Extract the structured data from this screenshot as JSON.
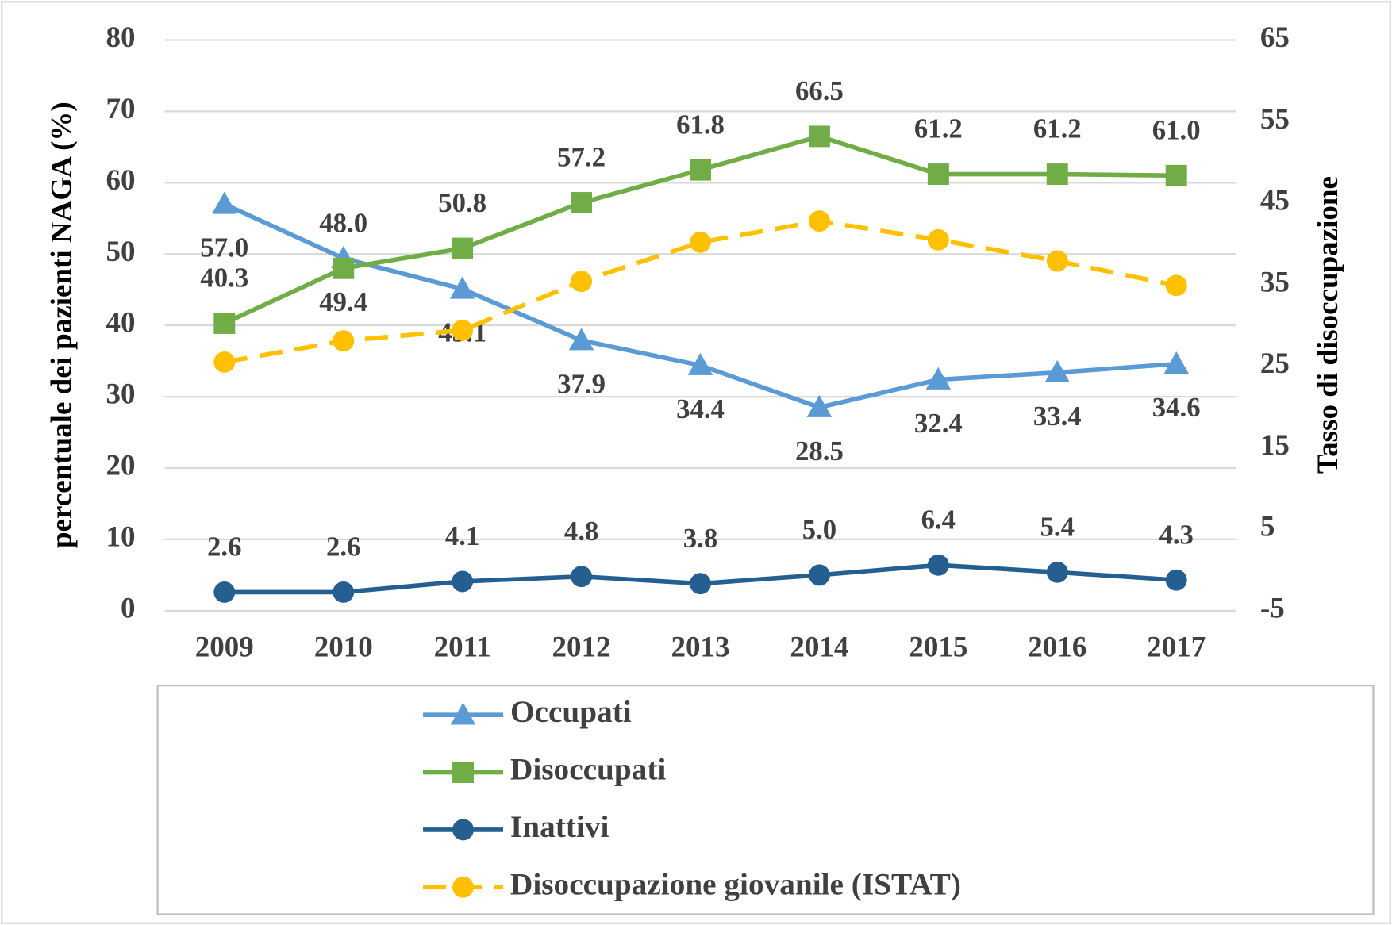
{
  "chart_data": {
    "type": "line",
    "categories": [
      "2009",
      "2010",
      "2011",
      "2012",
      "2013",
      "2014",
      "2015",
      "2016",
      "2017"
    ],
    "ylabel": "percentuale dei pazienti NAGA (%)",
    "y2label": "Tasso di disoccupazione",
    "ylim": [
      0,
      80
    ],
    "yticks": [
      0,
      10,
      20,
      30,
      40,
      50,
      60,
      70,
      80
    ],
    "y2lim": [
      -5,
      65
    ],
    "y2ticks": [
      -5,
      5,
      15,
      25,
      35,
      45,
      55,
      65
    ],
    "grid": true,
    "legend": "bottom",
    "series": [
      {
        "name": "Occupati",
        "color": "#5b9bd5",
        "marker": "triangle",
        "label_pos": "below",
        "values": [
          57,
          49.4,
          45.1,
          37.9,
          34.4,
          28.5,
          32.4,
          33.4,
          34.6
        ],
        "value_labels": [
          "57.0",
          "49.4",
          "45.1",
          "37.9",
          "34.4",
          "28.5",
          "32.4",
          "33.4",
          "34.6"
        ]
      },
      {
        "name": "Disoccupati",
        "color": "#70ad47",
        "marker": "square",
        "label_pos": "above",
        "values": [
          40.3,
          48,
          50.8,
          57.2,
          61.8,
          66.5,
          61.2,
          61.2,
          61
        ],
        "value_labels": [
          "40.3",
          "48.0",
          "50.8",
          "57.2",
          "61.8",
          "66.5",
          "61.2",
          "61.2",
          "61.0"
        ]
      },
      {
        "name": "Inattivi",
        "color": "#255e91",
        "marker": "circle",
        "label_pos": "above",
        "values": [
          2.6,
          2.6,
          4.1,
          4.8,
          3.8,
          5,
          6.4,
          5.4,
          4.3
        ],
        "value_labels": [
          "2.6",
          "2.6",
          "4.1",
          "4.8",
          "3.8",
          "5.0",
          "6.4",
          "5.4",
          "4.3"
        ]
      },
      {
        "name": "Disoccupazione giovanile (ISTAT)",
        "color": "#ffc000",
        "marker": "circle",
        "dash": true,
        "axis": "y2",
        "values": [
          25.5,
          28.1,
          29.4,
          35.4,
          40.2,
          42.8,
          40.5,
          37.9,
          34.9
        ]
      }
    ]
  }
}
